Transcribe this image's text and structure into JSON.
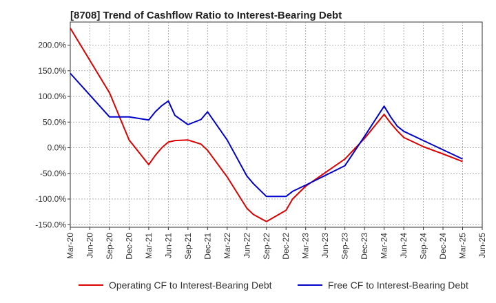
{
  "chart_data": {
    "type": "line",
    "title": "[8708]  Trend of Cashflow Ratio to Interest-Bearing Debt",
    "xlabel": "",
    "ylabel": "",
    "x_ticks": [
      "Mar-20",
      "Jun-20",
      "Sep-20",
      "Dec-20",
      "Mar-21",
      "Jun-21",
      "Sep-21",
      "Dec-21",
      "Mar-22",
      "Jun-22",
      "Sep-22",
      "Dec-22",
      "Mar-23",
      "Jun-23",
      "Sep-23",
      "Dec-23",
      "Mar-24",
      "Jun-24",
      "Sep-24",
      "Dec-24",
      "Mar-25",
      "Jun-25"
    ],
    "y_ticks": [
      200,
      150,
      100,
      50,
      0,
      -50,
      -100,
      -150
    ],
    "y_tick_labels": [
      "200.0%",
      "150.0%",
      "100.0%",
      "50.0%",
      "0.0%",
      "-50.0%",
      "-100.0%",
      "-150.0%"
    ],
    "ylim": [
      -155,
      245
    ],
    "grid": true,
    "legend_position": "bottom",
    "series": [
      {
        "name": "Operating CF to Interest-Bearing Debt",
        "color": "#dd0000",
        "x": [
          "Mar-20",
          "Sep-20",
          "Dec-20",
          "Mar-21",
          "Apr-21",
          "May-21",
          "Jun-21",
          "Jul-21",
          "Sep-21",
          "Nov-21",
          "Dec-21",
          "Mar-22",
          "Jun-22",
          "Jul-22",
          "Sep-22",
          "Dec-22",
          "Jan-23",
          "Mar-23",
          "Sep-23",
          "Dec-23",
          "Mar-24",
          "Apr-24",
          "May-24",
          "Jun-24",
          "Sep-24",
          "Dec-24",
          "Mar-25"
        ],
        "values": [
          233,
          107,
          15,
          -33,
          -15,
          0,
          11,
          14,
          15,
          7,
          -5,
          -57,
          -118,
          -130,
          -144,
          -122,
          -100,
          -75,
          -22,
          18,
          65,
          48,
          33,
          20,
          2,
          -12,
          -27
        ]
      },
      {
        "name": "Free CF to Interest-Bearing Debt",
        "color": "#0000cc",
        "x": [
          "Mar-20",
          "Sep-20",
          "Dec-20",
          "Mar-21",
          "Apr-21",
          "May-21",
          "Jun-21",
          "Jul-21",
          "Sep-21",
          "Nov-21",
          "Dec-21",
          "Mar-22",
          "Jun-22",
          "Jul-22",
          "Sep-22",
          "Dec-22",
          "Jan-23",
          "Mar-23",
          "Sep-23",
          "Dec-23",
          "Mar-24",
          "Apr-24",
          "May-24",
          "Jun-24",
          "Sep-24",
          "Dec-24",
          "Mar-25"
        ],
        "values": [
          145,
          60,
          60,
          54,
          70,
          82,
          91,
          63,
          45,
          55,
          70,
          15,
          -55,
          -70,
          -95,
          -95,
          -85,
          -73,
          -35,
          22,
          81,
          60,
          42,
          32,
          14,
          -4,
          -22
        ]
      }
    ]
  }
}
